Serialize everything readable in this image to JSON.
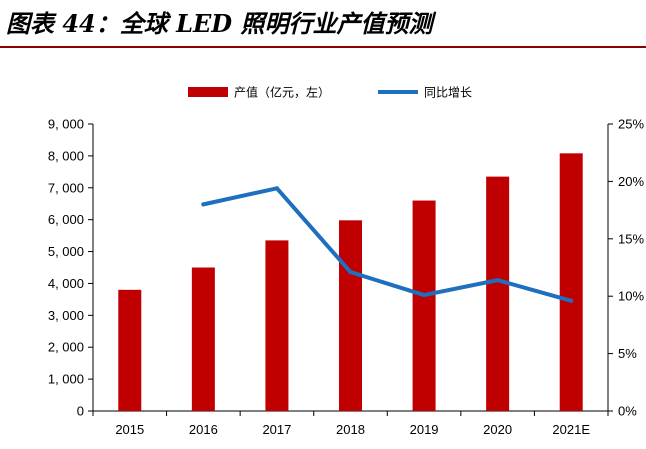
{
  "figure_title": "图表 44：全球 LED 照明行业产值预测",
  "chart_data": {
    "type": "bar",
    "categories": [
      "2015",
      "2016",
      "2017",
      "2018",
      "2019",
      "2020",
      "2021E"
    ],
    "series": [
      {
        "name": "产值（亿元，左）",
        "type": "bar",
        "axis": "left",
        "color": "#c00000",
        "values": [
          3800,
          4500,
          5350,
          5980,
          6600,
          7350,
          8080
        ]
      },
      {
        "name": "同比增长",
        "type": "line",
        "axis": "right",
        "color": "#1f6fbf",
        "values": [
          null,
          18.0,
          19.4,
          12.1,
          10.1,
          11.4,
          9.6
        ]
      }
    ],
    "left_axis": {
      "min": 0,
      "max": 9000,
      "step": 1000,
      "tick_labels": [
        "0",
        "1, 000",
        "2, 000",
        "3, 000",
        "4, 000",
        "5, 000",
        "6, 000",
        "7, 000",
        "8, 000",
        "9, 000"
      ]
    },
    "right_axis": {
      "min": 0,
      "max": 25,
      "step": 5,
      "tick_labels": [
        "0%",
        "5%",
        "10%",
        "15%",
        "20%",
        "25%"
      ]
    },
    "legend_position": "top-center",
    "grid": false
  }
}
